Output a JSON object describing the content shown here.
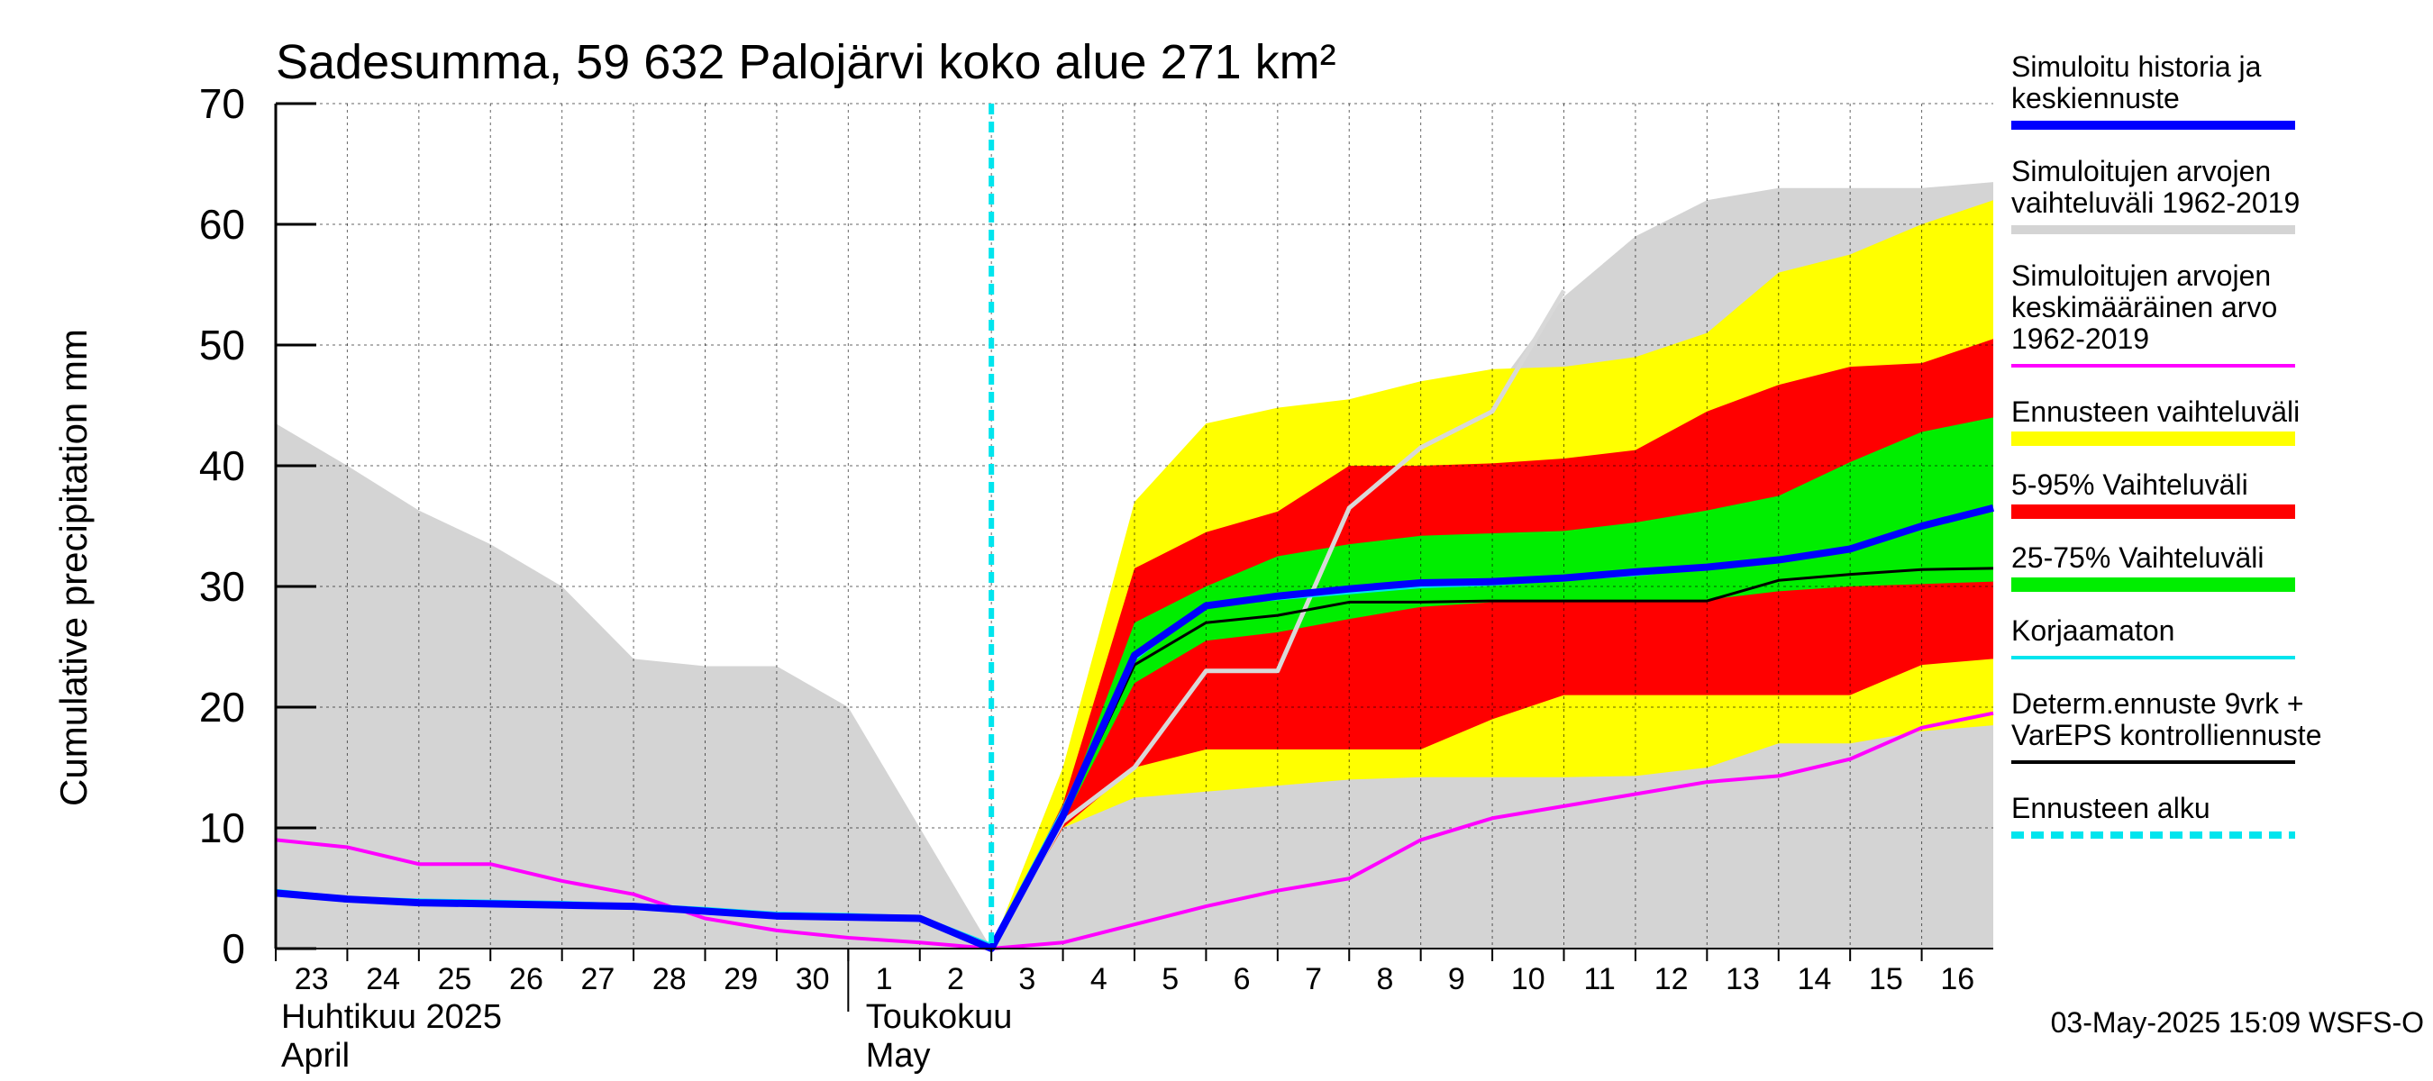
{
  "chart_data": {
    "type": "area",
    "title": "Sadesumma, 59 632 Palojärvi koko alue 271 km²",
    "ylabel": "Cumulative precipitation   mm",
    "ylim": [
      0,
      70
    ],
    "yticks": [
      0,
      10,
      20,
      30,
      40,
      50,
      60,
      70
    ],
    "grid": true,
    "legend_position": "right",
    "x_dates": [
      "2025-04-23",
      "2025-04-24",
      "2025-04-25",
      "2025-04-26",
      "2025-04-27",
      "2025-04-28",
      "2025-04-29",
      "2025-04-30",
      "2025-05-01",
      "2025-05-02",
      "2025-05-03",
      "2025-05-04",
      "2025-05-05",
      "2025-05-06",
      "2025-05-07",
      "2025-05-08",
      "2025-05-09",
      "2025-05-10",
      "2025-05-11",
      "2025-05-12",
      "2025-05-13",
      "2025-05-14",
      "2025-05-15",
      "2025-05-16",
      "2025-05-17"
    ],
    "day_labels": [
      "23",
      "24",
      "25",
      "26",
      "27",
      "28",
      "29",
      "30",
      "1",
      "2",
      "3",
      "4",
      "5",
      "6",
      "7",
      "8",
      "9",
      "10",
      "11",
      "12",
      "13",
      "14",
      "15",
      "16"
    ],
    "month_labels": [
      {
        "line1": "Huhtikuu  2025",
        "line2": "April"
      },
      {
        "line1": "Toukokuu",
        "line2": "May"
      }
    ],
    "forecast_start": "2025-05-03",
    "colors": {
      "history_range": "#d4d4d4",
      "ensemble_range": "#ffff00",
      "p5_95": "#ff0000",
      "p25_75": "#00ee00",
      "mean_history": "#ff00ff",
      "sim_median": "#0000ff",
      "uncorrected": "#00e5ee",
      "deterministic": "#000000",
      "forecast_start": "#00e5ee",
      "grey_line": "#d8d8d8"
    },
    "series": [
      {
        "name": "Simuloitujen arvojen vaihteluväli 1962-2019",
        "kind": "band",
        "lower": [
          0,
          0,
          0,
          0,
          0,
          0,
          0,
          0,
          0,
          0,
          0,
          0,
          0,
          0,
          0,
          0,
          0,
          0,
          0,
          0,
          0,
          0,
          0,
          0,
          0
        ],
        "upper": [
          43.5,
          40,
          36.3,
          33.5,
          30,
          24,
          23.4,
          23.4,
          20,
          10,
          0,
          15,
          32,
          39,
          42,
          43.5,
          45.5,
          46,
          54,
          59,
          62,
          63,
          63,
          63,
          63.5
        ]
      },
      {
        "name": "Ennusteen vaihteluväli",
        "kind": "band",
        "x_start": 10,
        "lower": [
          0,
          10,
          12.5,
          13,
          13.5,
          14,
          14.2,
          14.2,
          14.2,
          14.3,
          15,
          17,
          17,
          18,
          18.5
        ],
        "upper": [
          0,
          15,
          37,
          43.5,
          44.8,
          45.5,
          47,
          48,
          48.2,
          49,
          51,
          56,
          57.5,
          60,
          62
        ]
      },
      {
        "name": "5-95% Vaihteluväli",
        "kind": "band",
        "x_start": 10,
        "lower": [
          0,
          10,
          15,
          16.5,
          16.5,
          16.5,
          16.5,
          19,
          21,
          21,
          21,
          21,
          21,
          23.5,
          24
        ]
      },
      {
        "name": "5-95% Vaihteluväli upper",
        "kind": "band-upper",
        "x_start": 10,
        "upper": [
          0,
          12,
          31.5,
          34.5,
          36.2,
          40,
          40,
          40.2,
          40.6,
          41.3,
          44.5,
          46.7,
          48.2,
          48.5,
          50.5
        ]
      },
      {
        "name": "25-75% Vaihteluväli",
        "kind": "band",
        "x_start": 10,
        "lower": [
          0,
          10.5,
          22,
          25.5,
          26.2,
          27.3,
          28.3,
          28.7,
          28.8,
          28.8,
          28.9,
          29.6,
          30,
          30.2,
          30.4
        ],
        "upper": [
          0,
          11,
          27,
          30,
          32.5,
          33.5,
          34.2,
          34.4,
          34.6,
          35.3,
          36.3,
          37.5,
          40.3,
          42.8,
          44
        ]
      },
      {
        "name": "Simuloitujen arvojen keskimääräinen arvo 1962-2019",
        "kind": "line",
        "values": [
          9,
          8.4,
          7,
          7,
          5.6,
          4.5,
          2.5,
          1.5,
          0.9,
          0.5,
          0,
          0.5,
          2,
          3.5,
          4.8,
          5.8,
          9,
          10.8,
          11.8,
          12.8,
          13.8,
          14.3,
          15.7,
          18.3,
          19.5
        ]
      },
      {
        "name": "grey simulated line",
        "kind": "line",
        "x_start": 10,
        "values": [
          0,
          10.5,
          15,
          23,
          23,
          36.5,
          41.5,
          44.5,
          54.5
        ]
      },
      {
        "name": "Korjaamaton",
        "kind": "line",
        "values": [
          4.8,
          4.2,
          4,
          3.9,
          3.8,
          3.6,
          3.3,
          2.9,
          2.8,
          2.6,
          0.3,
          11.5,
          24,
          28.5,
          29,
          29.5,
          30,
          30.2,
          30.6,
          31,
          31.6,
          32.2,
          33,
          35,
          36.5
        ]
      },
      {
        "name": "Simuloitu historia ja keskiennuste",
        "kind": "line",
        "values": [
          4.6,
          4.1,
          3.8,
          3.7,
          3.6,
          3.5,
          3.1,
          2.7,
          2.6,
          2.5,
          0,
          11,
          24.3,
          28.4,
          29.2,
          29.8,
          30.3,
          30.4,
          30.7,
          31.2,
          31.6,
          32.2,
          33.1,
          35,
          36.5
        ]
      },
      {
        "name": "Determ.ennuste 9vrk + VarEPS kontrolliennuste",
        "kind": "line",
        "x_start": 10,
        "values": [
          0,
          10.8,
          23.5,
          27,
          27.6,
          28.7,
          28.7,
          28.8,
          28.8,
          28.8,
          28.8,
          30.5,
          31,
          31.4,
          31.5
        ]
      }
    ],
    "legend": [
      {
        "label": "Simuloitu historia ja keskiennuste",
        "color": "#0000ff",
        "style": "thick"
      },
      {
        "label": "Simuloitujen arvojen vaihteluväli 1962-2019",
        "color": "#d4d4d4",
        "style": "thick"
      },
      {
        "label": "Simuloitujen arvojen keskimääräinen arvo 1962-2019",
        "color": "#ff00ff",
        "style": "thin"
      },
      {
        "label": "Ennusteen vaihteluväli",
        "color": "#ffff00",
        "style": "band"
      },
      {
        "label": "5-95% Vaihteluväli",
        "color": "#ff0000",
        "style": "band"
      },
      {
        "label": "25-75% Vaihteluväli",
        "color": "#00ee00",
        "style": "band"
      },
      {
        "label": "Korjaamaton",
        "color": "#00e5ee",
        "style": "thin"
      },
      {
        "label": "Determ.ennuste 9vrk + VarEPS kontrolliennuste",
        "color": "#000000",
        "style": "thin"
      },
      {
        "label": "Ennusteen alku",
        "color": "#00e5ee",
        "style": "dashed"
      }
    ],
    "legend_lines": [
      [
        "Simuloitu historia ja",
        "keskiennuste"
      ],
      [
        "Simuloitujen arvojen",
        "vaihteluväli 1962-2019"
      ],
      [
        "Simuloitujen arvojen",
        "keskimääräinen arvo",
        "   1962-2019"
      ],
      [
        "Ennusteen vaihteluväli"
      ],
      [
        "5-95% Vaihteluväli"
      ],
      [
        "25-75% Vaihteluväli"
      ],
      [
        "Korjaamaton"
      ],
      [
        "Determ.ennuste 9vrk +",
        "VarEPS kontrolliennuste"
      ],
      [
        "Ennusteen alku"
      ]
    ],
    "timestamp": "03-May-2025 15:09 WSFS-O"
  }
}
